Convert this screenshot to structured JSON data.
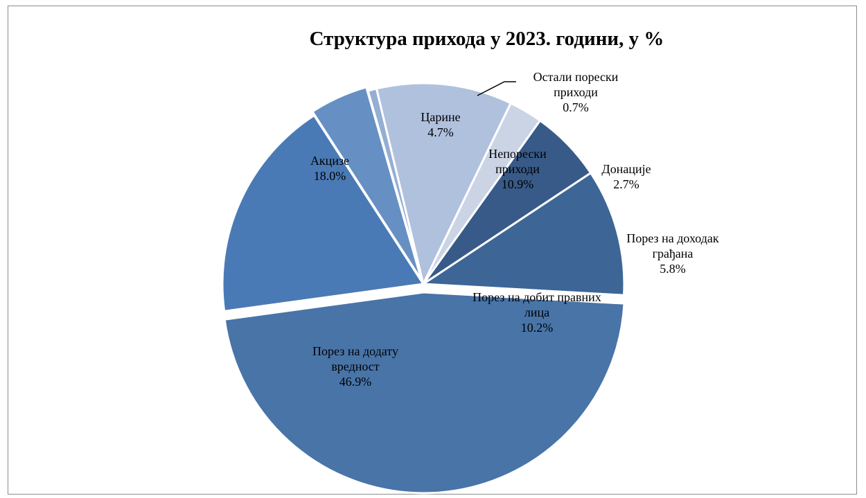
{
  "chart_data": {
    "type": "pie",
    "title": "Структура прихода у 2023. години, у %",
    "slices": [
      {
        "label_lines": [
          "Порез на додату",
          "вредност"
        ],
        "value_label": "46.9%",
        "value": 46.9,
        "color": "#4874a8"
      },
      {
        "label_lines": [
          "Акцизе"
        ],
        "value_label": "18.0%",
        "value": 18.0,
        "color": "#4a7ab5"
      },
      {
        "label_lines": [
          "Царине"
        ],
        "value_label": "4.7%",
        "value": 4.7,
        "color": "#6690c4"
      },
      {
        "label_lines": [
          "Остали порески",
          "приходи"
        ],
        "value_label": "0.7%",
        "value": 0.7,
        "color": "#95aed3"
      },
      {
        "label_lines": [
          "Непорески",
          "приходи"
        ],
        "value_label": "10.9%",
        "value": 10.9,
        "color": "#b0c1de"
      },
      {
        "label_lines": [
          "Донације"
        ],
        "value_label": "2.7%",
        "value": 2.7,
        "color": "#cbd4e5"
      },
      {
        "label_lines": [
          "Порез на доходак",
          "грађана"
        ],
        "value_label": "5.8%",
        "value": 5.8,
        "color": "#385a88"
      },
      {
        "label_lines": [
          "Порез на добит правних",
          "лица"
        ],
        "value_label": "10.2%",
        "value": 10.2,
        "color": "#3d6697"
      }
    ],
    "legend": "none"
  }
}
